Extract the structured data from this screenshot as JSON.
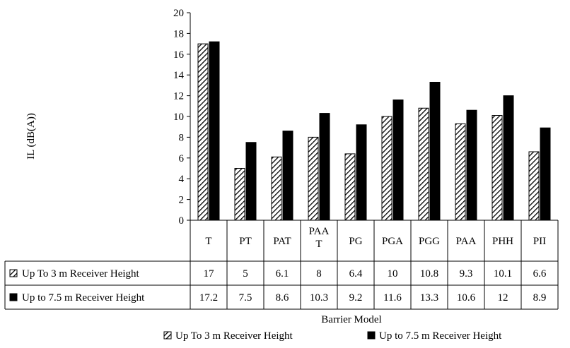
{
  "chart_data": {
    "type": "bar",
    "title": "",
    "xlabel": "Barrier Model",
    "ylabel": "IL (dB(A))",
    "ylim": [
      0,
      20
    ],
    "ytick_step": 2,
    "grid": false,
    "legend_position": "bottom",
    "data_table": true,
    "categories": [
      "T",
      "PT",
      "PAT",
      "PAA T",
      "PG",
      "PGA",
      "PGG",
      "PAA",
      "PHH",
      "PII"
    ],
    "series": [
      {
        "name": "Up To 3 m Receiver Height",
        "pattern": "hatched",
        "color": "#000000",
        "values": [
          17,
          5,
          6.1,
          8,
          6.4,
          10,
          10.8,
          9.3,
          10.1,
          6.6
        ],
        "labels": [
          "17",
          "5",
          "6.1",
          "8",
          "6.4",
          "10",
          "10.8",
          "9.3",
          "10.1",
          "6.6"
        ]
      },
      {
        "name": "Up to 7.5 m Receiver Height",
        "pattern": "solid",
        "color": "#000000",
        "values": [
          17.2,
          7.5,
          8.6,
          10.3,
          9.2,
          11.6,
          13.3,
          10.6,
          12,
          8.9
        ],
        "labels": [
          "17.2",
          "7.5",
          "8.6",
          "10.3",
          "9.2",
          "11.6",
          "13.3",
          "10.6",
          "12",
          "8.9"
        ]
      }
    ]
  }
}
